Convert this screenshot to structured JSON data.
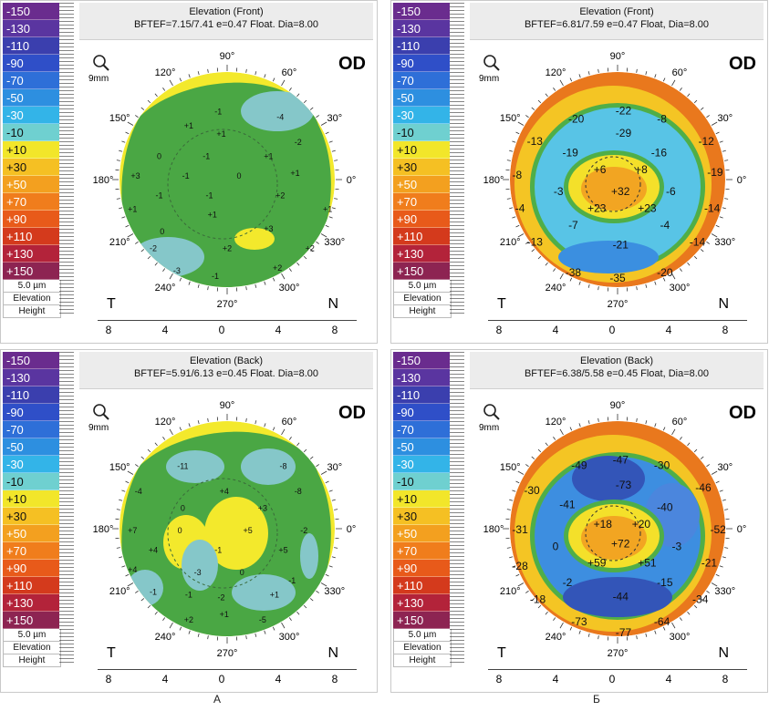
{
  "scale": {
    "values": [
      "-150",
      "-130",
      "-110",
      "-90",
      "-70",
      "-50",
      "-30",
      "-10",
      "+10",
      "+30",
      "+50",
      "+70",
      "+90",
      "+110",
      "+130",
      "+150"
    ],
    "colors": [
      "#6a2c8e",
      "#5a35a0",
      "#3b3fae",
      "#2f4fc8",
      "#2e6fd8",
      "#2d8fe0",
      "#33b4e8",
      "#6fd0d0",
      "#f2e62a",
      "#f5c023",
      "#f3a01f",
      "#f07d1c",
      "#e85a1a",
      "#d43a1c",
      "#b3233a",
      "#8d2452"
    ],
    "dark": [
      false,
      false,
      false,
      false,
      false,
      false,
      false,
      true,
      true,
      true,
      false,
      false,
      false,
      false,
      false,
      false
    ],
    "foot": [
      "5.0 µm",
      "Elevation",
      "Height"
    ]
  },
  "panels": [
    {
      "id": "front-a",
      "title": "Elevation (Front)",
      "subtitle": "BFTEF=7.15/7.41 e=0.47 Float. Dia=8.00",
      "scheme": "green",
      "values": [
        {
          "t": "-1",
          "x": 0.47,
          "y": 0.25
        },
        {
          "t": "+1",
          "x": 0.37,
          "y": 0.3
        },
        {
          "t": "+1",
          "x": 0.48,
          "y": 0.33
        },
        {
          "t": "-4",
          "x": 0.68,
          "y": 0.27
        },
        {
          "t": "-2",
          "x": 0.74,
          "y": 0.36
        },
        {
          "t": "0",
          "x": 0.27,
          "y": 0.41
        },
        {
          "t": "-1",
          "x": 0.43,
          "y": 0.41
        },
        {
          "t": "+1",
          "x": 0.64,
          "y": 0.41
        },
        {
          "t": "+3",
          "x": 0.19,
          "y": 0.48
        },
        {
          "t": "-1",
          "x": 0.36,
          "y": 0.48
        },
        {
          "t": "0",
          "x": 0.54,
          "y": 0.48
        },
        {
          "t": "+1",
          "x": 0.73,
          "y": 0.47
        },
        {
          "t": "-1",
          "x": 0.27,
          "y": 0.55
        },
        {
          "t": "-1",
          "x": 0.44,
          "y": 0.55
        },
        {
          "t": "+2",
          "x": 0.68,
          "y": 0.55
        },
        {
          "t": "+1",
          "x": 0.18,
          "y": 0.6
        },
        {
          "t": "+1",
          "x": 0.45,
          "y": 0.62
        },
        {
          "t": "+1",
          "x": 0.84,
          "y": 0.6
        },
        {
          "t": "0",
          "x": 0.28,
          "y": 0.68
        },
        {
          "t": "+3",
          "x": 0.64,
          "y": 0.67
        },
        {
          "t": "-2",
          "x": 0.25,
          "y": 0.74
        },
        {
          "t": "+2",
          "x": 0.5,
          "y": 0.74
        },
        {
          "t": "+2",
          "x": 0.78,
          "y": 0.74
        },
        {
          "t": "-3",
          "x": 0.33,
          "y": 0.82
        },
        {
          "t": "-1",
          "x": 0.46,
          "y": 0.84
        },
        {
          "t": "+2",
          "x": 0.67,
          "y": 0.81
        }
      ]
    },
    {
      "id": "front-b",
      "title": "Elevation (Front)",
      "subtitle": "BFTEF=6.81/7.59 e=0.47 Float, Dia=8.00",
      "scheme": "color",
      "values": [
        {
          "t": "-22",
          "x": 0.52,
          "y": 0.25
        },
        {
          "t": "-20",
          "x": 0.36,
          "y": 0.28
        },
        {
          "t": "-8",
          "x": 0.65,
          "y": 0.28
        },
        {
          "t": "-29",
          "x": 0.52,
          "y": 0.33
        },
        {
          "t": "-13",
          "x": 0.22,
          "y": 0.36
        },
        {
          "t": "-12",
          "x": 0.8,
          "y": 0.36
        },
        {
          "t": "-19",
          "x": 0.34,
          "y": 0.4
        },
        {
          "t": "-16",
          "x": 0.64,
          "y": 0.4
        },
        {
          "t": "-8",
          "x": 0.16,
          "y": 0.48
        },
        {
          "t": "+6",
          "x": 0.44,
          "y": 0.46
        },
        {
          "t": "+8",
          "x": 0.58,
          "y": 0.46
        },
        {
          "t": "-19",
          "x": 0.83,
          "y": 0.47
        },
        {
          "t": "-3",
          "x": 0.3,
          "y": 0.54
        },
        {
          "t": "+32",
          "x": 0.51,
          "y": 0.54
        },
        {
          "t": "-6",
          "x": 0.68,
          "y": 0.54
        },
        {
          "t": "-4",
          "x": 0.17,
          "y": 0.6
        },
        {
          "t": "+23",
          "x": 0.43,
          "y": 0.6
        },
        {
          "t": "+23",
          "x": 0.6,
          "y": 0.6
        },
        {
          "t": "-14",
          "x": 0.82,
          "y": 0.6
        },
        {
          "t": "-7",
          "x": 0.35,
          "y": 0.66
        },
        {
          "t": "-4",
          "x": 0.66,
          "y": 0.66
        },
        {
          "t": "-13",
          "x": 0.22,
          "y": 0.72
        },
        {
          "t": "-21",
          "x": 0.51,
          "y": 0.73
        },
        {
          "t": "-14",
          "x": 0.77,
          "y": 0.72
        },
        {
          "t": "-38",
          "x": 0.35,
          "y": 0.83
        },
        {
          "t": "-35",
          "x": 0.5,
          "y": 0.85
        },
        {
          "t": "-20",
          "x": 0.66,
          "y": 0.83
        }
      ]
    },
    {
      "id": "back-a",
      "title": "Elevation (Back)",
      "subtitle": "BFTEF=5.91/6.13 e=0.45 Float. Dia=8.00",
      "scheme": "green",
      "values": [
        {
          "t": "-11",
          "x": 0.35,
          "y": 0.27
        },
        {
          "t": "-8",
          "x": 0.69,
          "y": 0.27
        },
        {
          "t": "-4",
          "x": 0.2,
          "y": 0.36
        },
        {
          "t": "+4",
          "x": 0.49,
          "y": 0.36
        },
        {
          "t": "-8",
          "x": 0.74,
          "y": 0.36
        },
        {
          "t": "0",
          "x": 0.35,
          "y": 0.42
        },
        {
          "t": "+3",
          "x": 0.62,
          "y": 0.42
        },
        {
          "t": "+7",
          "x": 0.18,
          "y": 0.5
        },
        {
          "t": "0",
          "x": 0.34,
          "y": 0.5
        },
        {
          "t": "+5",
          "x": 0.57,
          "y": 0.5
        },
        {
          "t": "-2",
          "x": 0.76,
          "y": 0.5
        },
        {
          "t": "+4",
          "x": 0.25,
          "y": 0.57
        },
        {
          "t": "-1",
          "x": 0.47,
          "y": 0.57
        },
        {
          "t": "+5",
          "x": 0.69,
          "y": 0.57
        },
        {
          "t": "+4",
          "x": 0.18,
          "y": 0.64
        },
        {
          "t": "-3",
          "x": 0.4,
          "y": 0.65
        },
        {
          "t": "0",
          "x": 0.55,
          "y": 0.65
        },
        {
          "t": "-1",
          "x": 0.72,
          "y": 0.68
        },
        {
          "t": "-1",
          "x": 0.25,
          "y": 0.72
        },
        {
          "t": "-1",
          "x": 0.37,
          "y": 0.73
        },
        {
          "t": "-2",
          "x": 0.48,
          "y": 0.74
        },
        {
          "t": "+1",
          "x": 0.66,
          "y": 0.73
        },
        {
          "t": "+2",
          "x": 0.37,
          "y": 0.82
        },
        {
          "t": "+1",
          "x": 0.49,
          "y": 0.8
        },
        {
          "t": "-5",
          "x": 0.62,
          "y": 0.82
        }
      ]
    },
    {
      "id": "back-b",
      "title": "Elevation (Back)",
      "subtitle": "BFTEF=6.38/5.58 e=0.45 Float, Dia=8.00",
      "scheme": "color",
      "values": [
        {
          "t": "-47",
          "x": 0.51,
          "y": 0.25
        },
        {
          "t": "-49",
          "x": 0.37,
          "y": 0.27
        },
        {
          "t": "-30",
          "x": 0.65,
          "y": 0.27
        },
        {
          "t": "-30",
          "x": 0.21,
          "y": 0.36
        },
        {
          "t": "-73",
          "x": 0.52,
          "y": 0.34
        },
        {
          "t": "-46",
          "x": 0.79,
          "y": 0.35
        },
        {
          "t": "-41",
          "x": 0.33,
          "y": 0.41
        },
        {
          "t": "-40",
          "x": 0.66,
          "y": 0.42
        },
        {
          "t": "-31",
          "x": 0.17,
          "y": 0.5
        },
        {
          "t": "+18",
          "x": 0.45,
          "y": 0.48
        },
        {
          "t": "+20",
          "x": 0.58,
          "y": 0.48
        },
        {
          "t": "-52",
          "x": 0.84,
          "y": 0.5
        },
        {
          "t": "0",
          "x": 0.29,
          "y": 0.56
        },
        {
          "t": "+72",
          "x": 0.51,
          "y": 0.55
        },
        {
          "t": "-3",
          "x": 0.7,
          "y": 0.56
        },
        {
          "t": "-28",
          "x": 0.17,
          "y": 0.63
        },
        {
          "t": "+59",
          "x": 0.43,
          "y": 0.62
        },
        {
          "t": "+51",
          "x": 0.6,
          "y": 0.62
        },
        {
          "t": "-21",
          "x": 0.81,
          "y": 0.62
        },
        {
          "t": "-2",
          "x": 0.33,
          "y": 0.69
        },
        {
          "t": "-15",
          "x": 0.66,
          "y": 0.69
        },
        {
          "t": "-18",
          "x": 0.23,
          "y": 0.75
        },
        {
          "t": "-44",
          "x": 0.51,
          "y": 0.74
        },
        {
          "t": "-34",
          "x": 0.78,
          "y": 0.75
        },
        {
          "t": "-73",
          "x": 0.37,
          "y": 0.83
        },
        {
          "t": "-64",
          "x": 0.65,
          "y": 0.83
        },
        {
          "t": "-77",
          "x": 0.52,
          "y": 0.87
        }
      ]
    }
  ],
  "eye": "OD",
  "zoom": "9mm",
  "left_letter": "T",
  "right_letter": "N",
  "angles": [
    {
      "t": "90°",
      "a": 90
    },
    {
      "t": "60°",
      "a": 60
    },
    {
      "t": "30°",
      "a": 30
    },
    {
      "t": "0°",
      "a": 0
    },
    {
      "t": "330°",
      "a": 330
    },
    {
      "t": "300°",
      "a": 300
    },
    {
      "t": "270°",
      "a": 270
    },
    {
      "t": "240°",
      "a": 240
    },
    {
      "t": "210°",
      "a": 210
    },
    {
      "t": "180°",
      "a": 180
    },
    {
      "t": "150°",
      "a": 150
    },
    {
      "t": "120°",
      "a": 120
    }
  ],
  "axis_labels": [
    "8",
    "4",
    "0",
    "4",
    "8"
  ],
  "captions": [
    "А",
    "Б"
  ]
}
